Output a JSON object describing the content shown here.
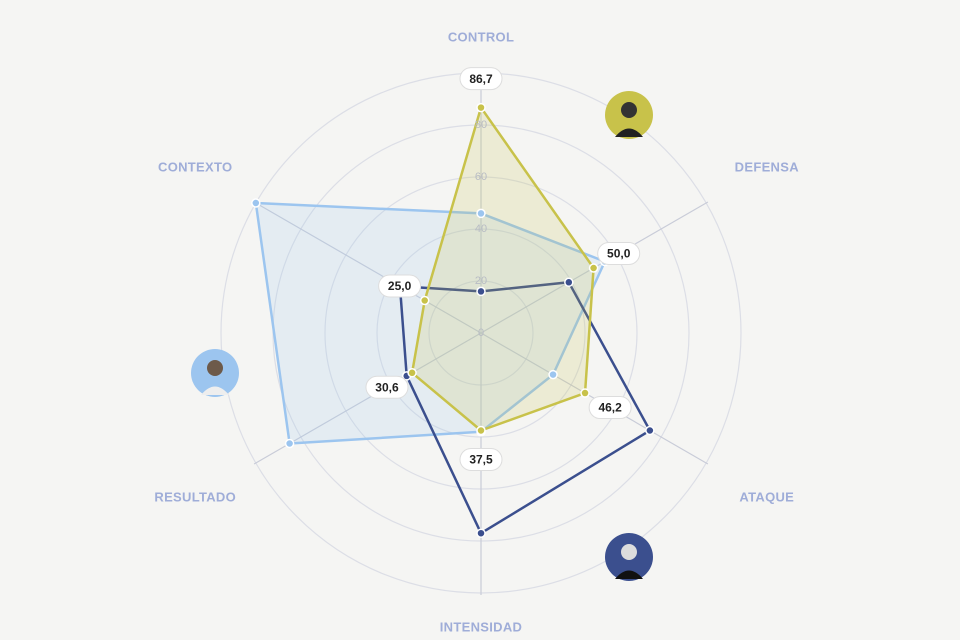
{
  "chart_data": {
    "type": "radar",
    "categories": [
      "CONTROL",
      "DEFENSA",
      "ATAQUE",
      "INTENSIDAD",
      "RESULTADO",
      "CONTEXTO"
    ],
    "ylim": [
      0,
      100
    ],
    "yticks": [
      0,
      20,
      40,
      60,
      80
    ],
    "grid": true,
    "series": [
      {
        "color": "#9cc5ef",
        "values": [
          46,
          55,
          32,
          38,
          85,
          100
        ]
      },
      {
        "color": "#3b4f8e",
        "values": [
          16,
          39,
          75,
          77,
          33,
          36
        ]
      },
      {
        "color": "#c8c24a",
        "values": [
          86.7,
          50.0,
          46.2,
          37.5,
          30.6,
          25.0
        ],
        "value_labels": [
          "86,7",
          "50,0",
          "46,2",
          "37,5",
          "30,6",
          "25,0"
        ]
      }
    ]
  }
}
